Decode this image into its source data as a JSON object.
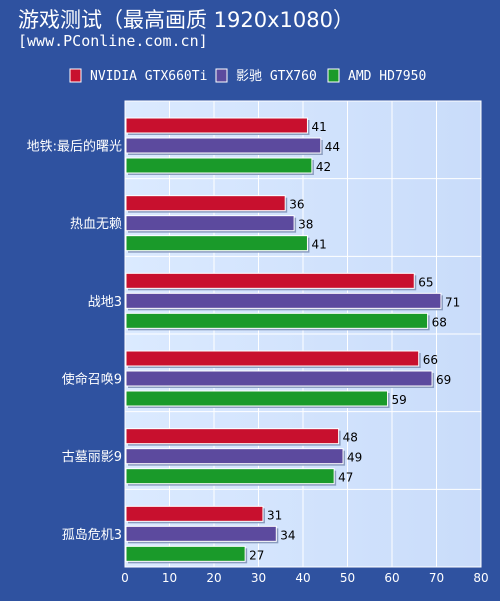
{
  "chart_data": {
    "type": "bar",
    "orientation": "horizontal",
    "title": "游戏测试（最高画质 1920x1080）",
    "subtitle": "[www.PConline.com.cn]",
    "categories": [
      "地铁:最后的曙光",
      "热血无赖",
      "战地3",
      "使命召唤9",
      "古墓丽影9",
      "孤岛危机3"
    ],
    "series": [
      {
        "name": "NVIDIA GTX660Ti",
        "color": "#c8102e",
        "values": [
          41,
          36,
          65,
          66,
          48,
          31
        ]
      },
      {
        "name": "影驰 GTX760",
        "color": "#5c4a9e",
        "values": [
          44,
          38,
          71,
          69,
          49,
          34
        ]
      },
      {
        "name": "AMD HD7950",
        "color": "#1a9a2a",
        "values": [
          42,
          41,
          68,
          59,
          47,
          27
        ]
      }
    ],
    "xlim": [
      0,
      80
    ],
    "xticks": [
      0,
      10,
      20,
      30,
      40,
      50,
      60,
      70,
      80
    ],
    "legend_position": "top",
    "grid": true
  }
}
